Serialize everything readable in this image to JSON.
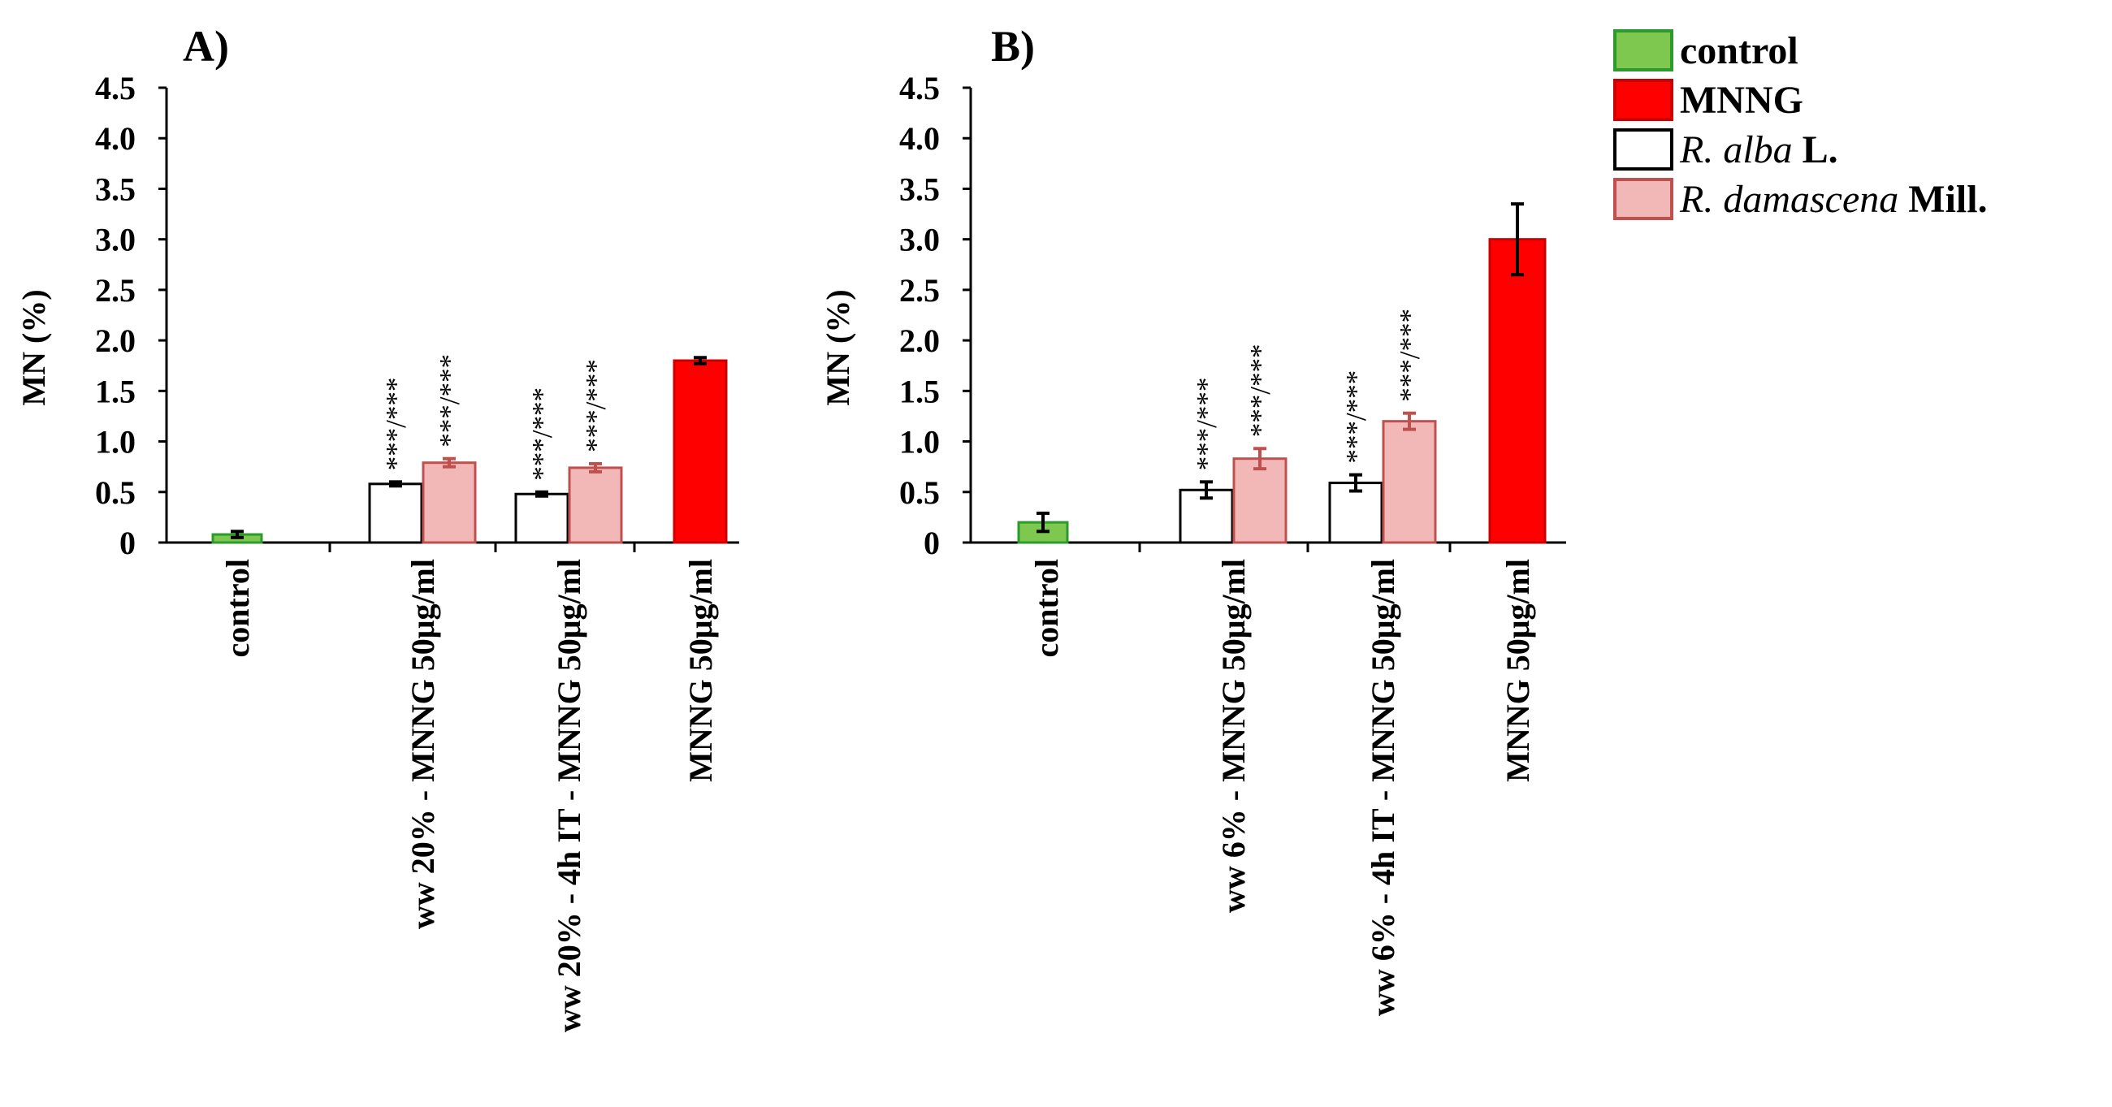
{
  "chart_data": [
    {
      "type": "bar",
      "panel": "A)",
      "ylabel": "MN (%)",
      "ylim": [
        0,
        4.5
      ],
      "yticks": [
        "0",
        "0.5",
        "1.0",
        "1.5",
        "2.0",
        "2.5",
        "3.0",
        "3.5",
        "4.0",
        "4.5"
      ],
      "categories": [
        "control",
        "ww 20% - MNNG 50μg/ml",
        "ww 20% - 4h IT - MNNG 50μg/ml",
        "MNNG 50μg/ml"
      ],
      "bars": [
        {
          "category": 0,
          "series": "control",
          "value": 0.08,
          "error": 0.03,
          "sig": ""
        },
        {
          "category": 1,
          "series": "R. alba L.",
          "value": 0.58,
          "error": 0.02,
          "sig": "***/***"
        },
        {
          "category": 1,
          "series": "R. damascena Mill.",
          "value": 0.79,
          "error": 0.04,
          "sig": "***/***"
        },
        {
          "category": 2,
          "series": "R. alba L.",
          "value": 0.48,
          "error": 0.02,
          "sig": "***/***"
        },
        {
          "category": 2,
          "series": "R. damascena Mill.",
          "value": 0.74,
          "error": 0.04,
          "sig": "***/***"
        },
        {
          "category": 3,
          "series": "MNNG",
          "value": 1.8,
          "error": 0.03,
          "sig": ""
        }
      ]
    },
    {
      "type": "bar",
      "panel": "B)",
      "ylabel": "MN (%)",
      "ylim": [
        0,
        4.5
      ],
      "yticks": [
        "0",
        "0.5",
        "1.0",
        "1.5",
        "2.0",
        "2.5",
        "3.0",
        "3.5",
        "4.0",
        "4.5"
      ],
      "categories": [
        "control",
        "ww 6% - MNNG 50μg/ml",
        "ww 6% - 4h IT - MNNG 50μg/ml",
        "MNNG 50μg/ml"
      ],
      "bars": [
        {
          "category": 0,
          "series": "control",
          "value": 0.2,
          "error": 0.09,
          "sig": ""
        },
        {
          "category": 1,
          "series": "R. alba L.",
          "value": 0.52,
          "error": 0.08,
          "sig": "***/***"
        },
        {
          "category": 1,
          "series": "R. damascena Mill.",
          "value": 0.83,
          "error": 0.1,
          "sig": "***/***"
        },
        {
          "category": 2,
          "series": "R. alba L.",
          "value": 0.59,
          "error": 0.08,
          "sig": "***/***"
        },
        {
          "category": 2,
          "series": "R. damascena Mill.",
          "value": 1.2,
          "error": 0.08,
          "sig": "***/***"
        },
        {
          "category": 3,
          "series": "MNNG",
          "value": 3.0,
          "error": 0.35,
          "sig": ""
        }
      ]
    }
  ],
  "legend": [
    {
      "name_main": "control",
      "name_suffix": "",
      "italic": false,
      "fill": "#7ec850",
      "stroke": "#2c9a2c"
    },
    {
      "name_main": "MNNG",
      "name_suffix": "",
      "italic": false,
      "fill": "#ff0000",
      "stroke": "#cc0000"
    },
    {
      "name_main": "R. alba",
      "name_suffix": " L.",
      "italic": true,
      "fill": "#ffffff",
      "stroke": "#000000"
    },
    {
      "name_main": "R. damascena",
      "name_suffix": " Mill.",
      "italic": true,
      "fill": "#f2b8b8",
      "stroke": "#c0504d"
    }
  ],
  "series_colors": {
    "control": {
      "fill": "#7ec850",
      "stroke": "#2c9a2c",
      "err": "#000000"
    },
    "MNNG": {
      "fill": "#ff0000",
      "stroke": "#cc0000",
      "err": "#000000"
    },
    "R. alba L.": {
      "fill": "#ffffff",
      "stroke": "#000000",
      "err": "#000000"
    },
    "R. damascena Mill.": {
      "fill": "#f2b8b8",
      "stroke": "#c0504d",
      "err": "#c0504d"
    }
  }
}
